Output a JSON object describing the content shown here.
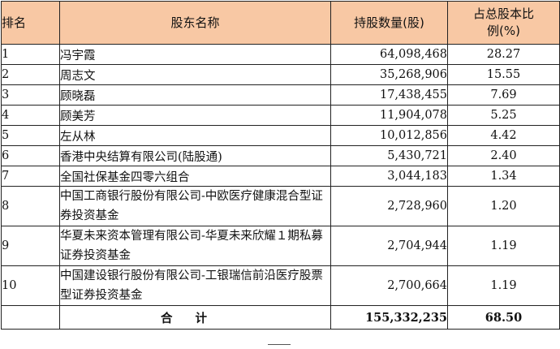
{
  "table": {
    "headers": {
      "rank": "排名",
      "name": "股东名称",
      "shares": "持股数量(股)",
      "percent": "占总股本比例(%)"
    },
    "rows": [
      {
        "rank": "1",
        "name": "冯宇霞",
        "shares": "64,098,468",
        "percent": "28.27"
      },
      {
        "rank": "2",
        "name": "周志文",
        "shares": "35,268,906",
        "percent": "15.55"
      },
      {
        "rank": "3",
        "name": "顾晓磊",
        "shares": "17,438,455",
        "percent": "7.69"
      },
      {
        "rank": "4",
        "name": "顾美芳",
        "shares": "11,904,078",
        "percent": "5.25"
      },
      {
        "rank": "5",
        "name": "左从林",
        "shares": "10,012,856",
        "percent": "4.42"
      },
      {
        "rank": "6",
        "name": "香港中央结算有限公司(陆股通)",
        "shares": "5,430,721",
        "percent": "2.40"
      },
      {
        "rank": "7",
        "name": "全国社保基金四零六组合",
        "shares": "3,044,183",
        "percent": "1.34"
      },
      {
        "rank": "8",
        "name": "中国工商银行股份有限公司-中欧医疗健康混合型证券投资基金",
        "shares": "2,728,960",
        "percent": "1.20"
      },
      {
        "rank": "9",
        "name": "华夏未来资本管理有限公司-华夏未来欣耀１期私募证券投资基金",
        "shares": "2,704,944",
        "percent": "1.19"
      },
      {
        "rank": "10",
        "name": "中国建设银行股份有限公司-工银瑞信前沿医疗股票型证券投资基金",
        "shares": "2,700,664",
        "percent": "1.19"
      }
    ],
    "total": {
      "label": "合计",
      "shares": "155,332,235",
      "percent": "68.50"
    }
  }
}
